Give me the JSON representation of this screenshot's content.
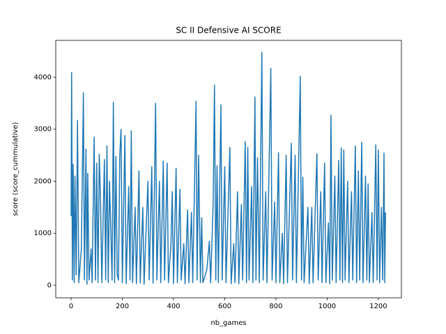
{
  "chart_data": {
    "type": "line",
    "title": "SC II Defensive AI SCORE",
    "x_label": "nb_games",
    "y_label": "score (score_cummulative)",
    "x": [
      0,
      2,
      5,
      8,
      12,
      15,
      20,
      25,
      30,
      40,
      48,
      52,
      58,
      62,
      65,
      70,
      78,
      82,
      90,
      95,
      100,
      105,
      110,
      115,
      120,
      130,
      135,
      140,
      145,
      150,
      160,
      165,
      170,
      175,
      180,
      185,
      190,
      195,
      200,
      210,
      215,
      225,
      230,
      235,
      240,
      250,
      255,
      265,
      270,
      280,
      285,
      300,
      305,
      315,
      320,
      330,
      335,
      345,
      350,
      360,
      365,
      375,
      380,
      390,
      395,
      400,
      410,
      415,
      425,
      430,
      440,
      445,
      455,
      460,
      470,
      475,
      488,
      492,
      498,
      505,
      510,
      515,
      530,
      540,
      545,
      555,
      560,
      565,
      570,
      575,
      585,
      590,
      600,
      605,
      620,
      625,
      635,
      640,
      650,
      655,
      665,
      670,
      680,
      685,
      690,
      695,
      705,
      710,
      718,
      722,
      728,
      735,
      745,
      750,
      760,
      765,
      780,
      785,
      795,
      800,
      810,
      815,
      825,
      830,
      840,
      845,
      860,
      865,
      875,
      880,
      895,
      900,
      905,
      910,
      925,
      930,
      940,
      945,
      960,
      965,
      975,
      980,
      990,
      995,
      1005,
      1010,
      1015,
      1020,
      1030,
      1035,
      1045,
      1050,
      1055,
      1060,
      1065,
      1070,
      1080,
      1085,
      1095,
      1100,
      1110,
      1115,
      1122,
      1127,
      1135,
      1140,
      1150,
      1155,
      1160,
      1165,
      1175,
      1180,
      1190,
      1195,
      1200,
      1205,
      1212,
      1217,
      1222,
      1225,
      1228
    ],
    "series": [
      {
        "color": "#1f77b4",
        "values": [
          1330,
          4090,
          100,
          2330,
          50,
          2100,
          200,
          3170,
          50,
          700,
          3700,
          100,
          2620,
          20,
          2150,
          100,
          700,
          50,
          2850,
          100,
          2350,
          50,
          2520,
          1600,
          50,
          2420,
          100,
          2680,
          50,
          2000,
          100,
          3520,
          50,
          2480,
          200,
          100,
          2500,
          3000,
          50,
          2880,
          30,
          1900,
          100,
          2970,
          50,
          1500,
          30,
          2200,
          50,
          1500,
          20,
          2000,
          100,
          2280,
          40,
          3500,
          100,
          2000,
          50,
          2390,
          100,
          2350,
          50,
          800,
          1800,
          30,
          2250,
          50,
          1850,
          100,
          800,
          30,
          1450,
          50,
          1400,
          50,
          3540,
          100,
          2500,
          50,
          1300,
          50,
          300,
          850,
          50,
          1600,
          3850,
          100,
          2300,
          50,
          3470,
          100,
          2280,
          50,
          2650,
          30,
          800,
          50,
          1800,
          30,
          1550,
          100,
          2760,
          50,
          2650,
          100,
          1900,
          50,
          3620,
          100,
          2450,
          50,
          4480,
          100,
          1800,
          50,
          4170,
          100,
          1600,
          50,
          2550,
          50,
          1000,
          30,
          2500,
          50,
          2730,
          100,
          2500,
          50,
          4020,
          100,
          2080,
          50,
          1500,
          30,
          1500,
          50,
          2530,
          100,
          1800,
          50,
          2350,
          50,
          1200,
          30,
          3270,
          100,
          2100,
          50,
          2400,
          100,
          2640,
          50,
          2600,
          100,
          2000,
          50,
          1800,
          100,
          2680,
          50,
          2200,
          100,
          2750,
          50,
          2100,
          100,
          1950,
          50,
          1400,
          50,
          2700,
          100,
          2600,
          50,
          1500,
          100,
          2540,
          50,
          1400
        ]
      }
    ],
    "xlim": [
      -60,
      1290
    ],
    "ylim": [
      -241,
      4709
    ],
    "xticks": [
      0,
      200,
      400,
      600,
      800,
      1000,
      1200
    ],
    "yticks": [
      0,
      1000,
      2000,
      3000,
      4000
    ]
  }
}
